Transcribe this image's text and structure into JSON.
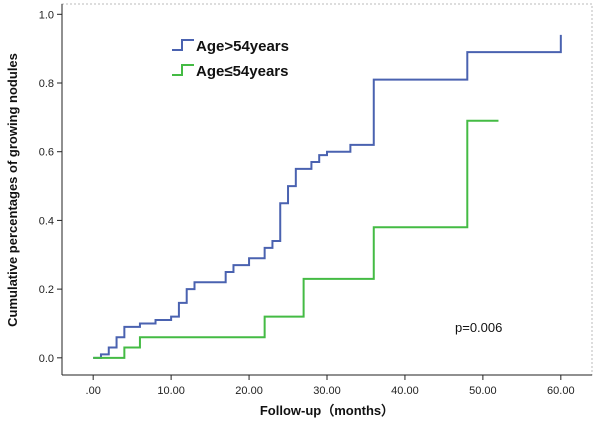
{
  "chart_data": {
    "type": "line",
    "line_style": "step",
    "xlabel": "Follow-up（months）",
    "ylabel": "Cumulative percentages of growing nodules",
    "xlim": [
      -4,
      64
    ],
    "ylim": [
      -0.05,
      1.03
    ],
    "x_ticks": [
      0,
      10,
      20,
      30,
      40,
      50,
      60
    ],
    "x_tick_labels": [
      ".00",
      "10.00",
      "20.00",
      "30.00",
      "40.00",
      "50.00",
      "60.00"
    ],
    "y_ticks": [
      0,
      0.2,
      0.4,
      0.6,
      0.8,
      1.0
    ],
    "y_tick_labels": [
      "0.0",
      "0.2",
      "0.4",
      "0.6",
      "0.8",
      "1.0"
    ],
    "grid": false,
    "legend_position": "top-left",
    "annotation": "p=0.006",
    "series": [
      {
        "name": "Age>54years",
        "color": "#4a62b0",
        "x": [
          0,
          1,
          2,
          3,
          4,
          6,
          8,
          10,
          11,
          12,
          13,
          14,
          17,
          18,
          20,
          22,
          23,
          24,
          25,
          26,
          28,
          29,
          30,
          33,
          36,
          48,
          60
        ],
        "y": [
          0,
          0.01,
          0.03,
          0.06,
          0.09,
          0.1,
          0.11,
          0.12,
          0.16,
          0.2,
          0.22,
          0.22,
          0.25,
          0.27,
          0.29,
          0.32,
          0.34,
          0.45,
          0.5,
          0.55,
          0.57,
          0.59,
          0.6,
          0.62,
          0.81,
          0.89,
          0.94
        ],
        "x_end": 60
      },
      {
        "name": "Age≤54years",
        "color": "#44bb44",
        "x": [
          0,
          4,
          6,
          22,
          27,
          36,
          48
        ],
        "y": [
          0,
          0.03,
          0.06,
          0.12,
          0.23,
          0.38,
          0.69
        ],
        "x_end": 52
      }
    ]
  }
}
